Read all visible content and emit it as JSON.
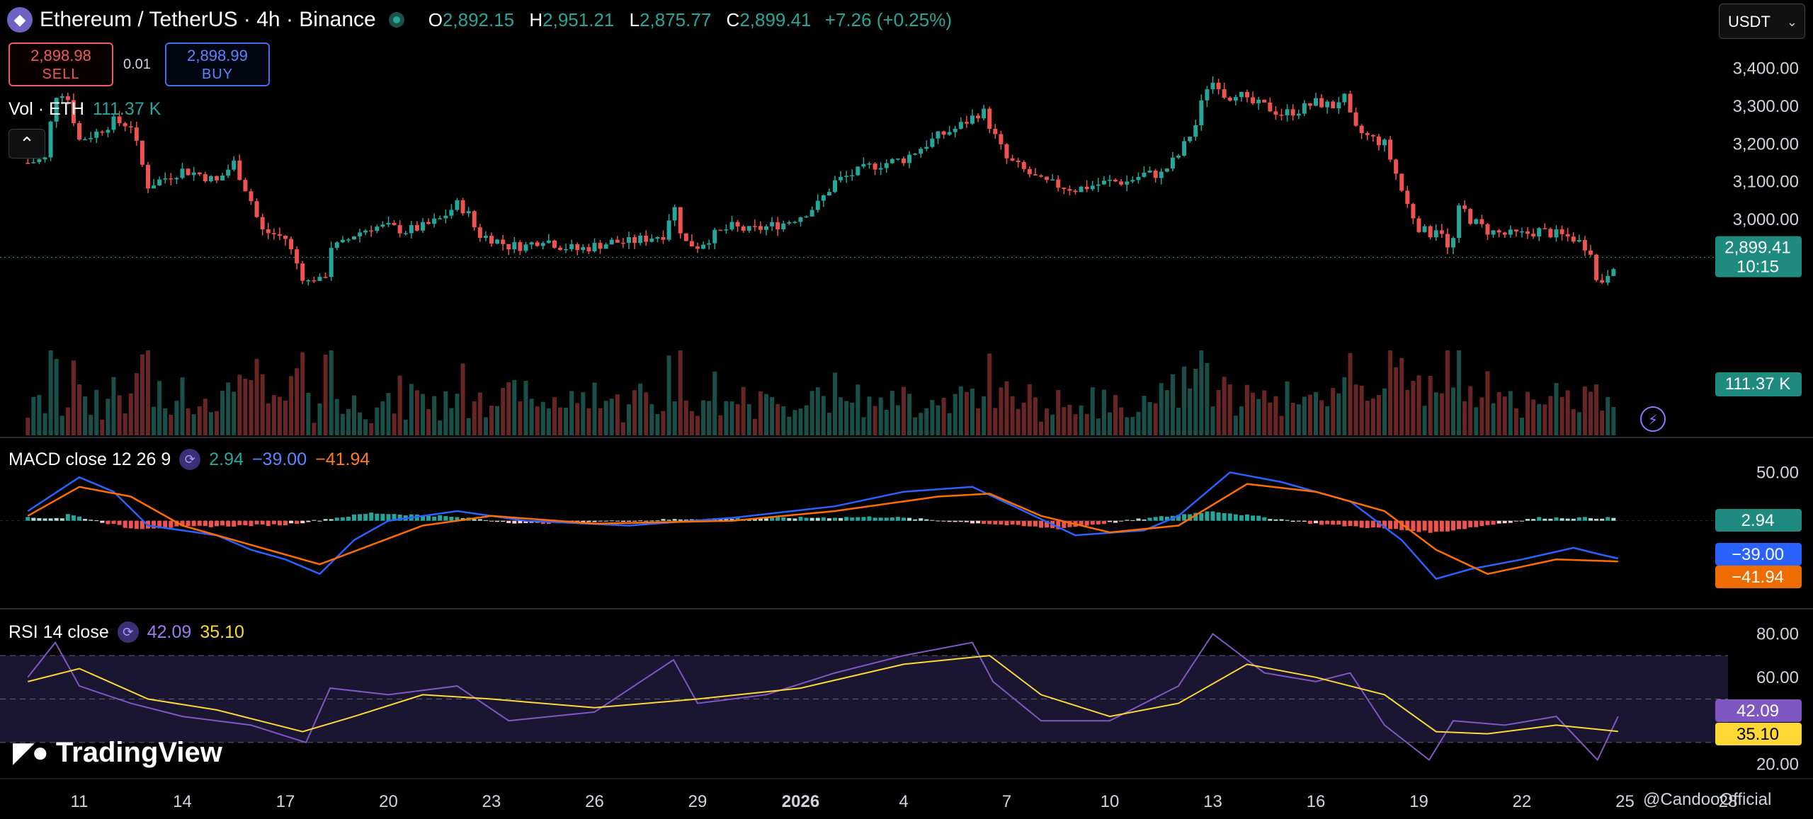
{
  "header": {
    "symbol": "Ethereum / TetherUS · 4h · Binance",
    "coin_icon": "ethereum-icon",
    "ohlc": {
      "o_label": "O",
      "o": "2,892.15",
      "h_label": "H",
      "h": "2,951.21",
      "l_label": "L",
      "l": "2,875.77",
      "c_label": "C",
      "c": "2,899.41",
      "change": "+7.26 (+0.25%)"
    }
  },
  "trade": {
    "sell_price": "2,898.98",
    "sell_label": "SELL",
    "spread": "0.01",
    "buy_price": "2,898.99",
    "buy_label": "BUY"
  },
  "volume_label": {
    "name": "Vol · ETH",
    "value": "111.37 K"
  },
  "collapse_icon": "chevron-up-icon",
  "currency_select": {
    "value": "USDT"
  },
  "macd_label": {
    "name": "MACD close 12 26 9",
    "hist": "2.94",
    "macd": "−39.00",
    "signal": "−41.94"
  },
  "rsi_label": {
    "name": "RSI 14 close",
    "rsi": "42.09",
    "ma": "35.10"
  },
  "logo": "TradingView",
  "watermark": "@CandooOfficial",
  "colors": {
    "up": "#26a69a",
    "down": "#ef5350",
    "macd_line": "#2962ff",
    "signal_line": "#ff6d00",
    "rsi": "#7e57c2",
    "rsi_ma": "#fdd835",
    "background": "#000000"
  },
  "chart_data": {
    "type": "candlestick",
    "interval": "4h",
    "price_axis_ticks": [
      "3,400.00",
      "3,300.00",
      "3,200.00",
      "3,100.00",
      "3,000.00"
    ],
    "price_range": [
      2700,
      3450
    ],
    "x_tick_labels": [
      "11",
      "14",
      "17",
      "20",
      "23",
      "26",
      "29",
      "2026",
      "4",
      "7",
      "10",
      "13",
      "16",
      "19",
      "22",
      "25",
      "28"
    ],
    "last_price": {
      "price": "2,899.41",
      "countdown": "10:15"
    },
    "last_volume": "111.37 K",
    "price_series": [
      {
        "d": 9.5,
        "p": 3150
      },
      {
        "d": 10.0,
        "p": 3160
      },
      {
        "d": 10.3,
        "p": 3330
      },
      {
        "d": 10.6,
        "p": 3340
      },
      {
        "d": 11.0,
        "p": 3210
      },
      {
        "d": 11.5,
        "p": 3230
      },
      {
        "d": 12.0,
        "p": 3260
      },
      {
        "d": 12.5,
        "p": 3250
      },
      {
        "d": 13.0,
        "p": 3090
      },
      {
        "d": 13.5,
        "p": 3110
      },
      {
        "d": 14.0,
        "p": 3130
      },
      {
        "d": 14.5,
        "p": 3120
      },
      {
        "d": 15.0,
        "p": 3100
      },
      {
        "d": 15.5,
        "p": 3150
      },
      {
        "d": 16.0,
        "p": 3050
      },
      {
        "d": 16.3,
        "p": 2970
      },
      {
        "d": 16.7,
        "p": 2960
      },
      {
        "d": 17.0,
        "p": 2950
      },
      {
        "d": 17.3,
        "p": 2890
      },
      {
        "d": 17.6,
        "p": 2830
      },
      {
        "d": 17.9,
        "p": 2850
      },
      {
        "d": 18.1,
        "p": 2820
      },
      {
        "d": 18.3,
        "p": 2930
      },
      {
        "d": 18.6,
        "p": 2930
      },
      {
        "d": 19.0,
        "p": 2960
      },
      {
        "d": 19.5,
        "p": 2980
      },
      {
        "d": 20.0,
        "p": 2980
      },
      {
        "d": 20.5,
        "p": 2970
      },
      {
        "d": 21.0,
        "p": 2980
      },
      {
        "d": 21.5,
        "p": 3000
      },
      {
        "d": 22.0,
        "p": 3040
      },
      {
        "d": 22.3,
        "p": 3020
      },
      {
        "d": 22.6,
        "p": 2960
      },
      {
        "d": 23.0,
        "p": 2950
      },
      {
        "d": 23.5,
        "p": 2930
      },
      {
        "d": 24.0,
        "p": 2930
      },
      {
        "d": 24.5,
        "p": 2950
      },
      {
        "d": 25.0,
        "p": 2930
      },
      {
        "d": 25.5,
        "p": 2920
      },
      {
        "d": 26.0,
        "p": 2930
      },
      {
        "d": 26.5,
        "p": 2940
      },
      {
        "d": 27.0,
        "p": 2940
      },
      {
        "d": 27.5,
        "p": 2950
      },
      {
        "d": 28.0,
        "p": 2960
      },
      {
        "d": 28.3,
        "p": 3040
      },
      {
        "d": 28.6,
        "p": 2940
      },
      {
        "d": 29.0,
        "p": 2930
      },
      {
        "d": 29.5,
        "p": 2960
      },
      {
        "d": 30.0,
        "p": 2980
      },
      {
        "d": 30.5,
        "p": 2970
      },
      {
        "d": 31.0,
        "p": 2980
      },
      {
        "d": 31.5,
        "p": 2990
      },
      {
        "d": 32.0,
        "p": 3010
      },
      {
        "d": 32.5,
        "p": 3040
      },
      {
        "d": 33.0,
        "p": 3100
      },
      {
        "d": 33.5,
        "p": 3120
      },
      {
        "d": 34.0,
        "p": 3140
      },
      {
        "d": 34.5,
        "p": 3150
      },
      {
        "d": 35.0,
        "p": 3160
      },
      {
        "d": 35.5,
        "p": 3190
      },
      {
        "d": 36.0,
        "p": 3220
      },
      {
        "d": 36.5,
        "p": 3240
      },
      {
        "d": 37.0,
        "p": 3270
      },
      {
        "d": 37.3,
        "p": 3290
      },
      {
        "d": 37.6,
        "p": 3230
      },
      {
        "d": 38.0,
        "p": 3160
      },
      {
        "d": 38.5,
        "p": 3130
      },
      {
        "d": 39.0,
        "p": 3100
      },
      {
        "d": 39.5,
        "p": 3090
      },
      {
        "d": 40.0,
        "p": 3080
      },
      {
        "d": 40.5,
        "p": 3090
      },
      {
        "d": 41.0,
        "p": 3100
      },
      {
        "d": 41.5,
        "p": 3100
      },
      {
        "d": 42.0,
        "p": 3120
      },
      {
        "d": 42.5,
        "p": 3120
      },
      {
        "d": 43.0,
        "p": 3170
      },
      {
        "d": 43.5,
        "p": 3250
      },
      {
        "d": 43.8,
        "p": 3350
      },
      {
        "d": 44.1,
        "p": 3370
      },
      {
        "d": 44.4,
        "p": 3320
      },
      {
        "d": 44.7,
        "p": 3340
      },
      {
        "d": 45.0,
        "p": 3310
      },
      {
        "d": 45.5,
        "p": 3300
      },
      {
        "d": 46.0,
        "p": 3280
      },
      {
        "d": 46.5,
        "p": 3290
      },
      {
        "d": 47.0,
        "p": 3310
      },
      {
        "d": 47.5,
        "p": 3300
      },
      {
        "d": 47.8,
        "p": 3330
      },
      {
        "d": 48.1,
        "p": 3240
      },
      {
        "d": 48.5,
        "p": 3220
      },
      {
        "d": 49.0,
        "p": 3200
      },
      {
        "d": 49.3,
        "p": 3130
      },
      {
        "d": 49.6,
        "p": 3050
      },
      {
        "d": 50.0,
        "p": 2980
      },
      {
        "d": 50.3,
        "p": 2960
      },
      {
        "d": 50.6,
        "p": 2990
      },
      {
        "d": 50.9,
        "p": 2900
      },
      {
        "d": 51.2,
        "p": 3040
      },
      {
        "d": 51.5,
        "p": 3000
      },
      {
        "d": 52.0,
        "p": 2970
      },
      {
        "d": 52.5,
        "p": 2960
      },
      {
        "d": 53.0,
        "p": 2960
      },
      {
        "d": 53.5,
        "p": 2970
      },
      {
        "d": 54.0,
        "p": 2960
      },
      {
        "d": 54.5,
        "p": 2950
      },
      {
        "d": 55.0,
        "p": 2920
      },
      {
        "d": 55.2,
        "p": 2820
      },
      {
        "d": 55.5,
        "p": 2860
      },
      {
        "d": 55.8,
        "p": 2900
      }
    ],
    "volume_series": [
      {
        "d": 10.3,
        "v": 0.9
      },
      {
        "d": 11.0,
        "v": 0.6
      },
      {
        "d": 16.0,
        "v": 0.65
      },
      {
        "d": 17.6,
        "v": 0.5
      },
      {
        "d": 18.1,
        "v": 0.95
      },
      {
        "d": 22.5,
        "v": 0.4
      },
      {
        "d": 28.3,
        "v": 0.4
      },
      {
        "d": 37.0,
        "v": 0.55
      },
      {
        "d": 43.8,
        "v": 0.85
      },
      {
        "d": 44.5,
        "v": 0.6
      },
      {
        "d": 49.3,
        "v": 0.8
      },
      {
        "d": 50.9,
        "v": 1.0
      },
      {
        "d": 50.3,
        "v": 0.7
      },
      {
        "d": 55.2,
        "v": 0.6
      }
    ],
    "macd": {
      "axis_ticks": [
        "50.00"
      ],
      "range": [
        -80,
        70
      ],
      "macd_line": [
        {
          "d": 9.5,
          "v": 10
        },
        {
          "d": 11.0,
          "v": 45
        },
        {
          "d": 12.0,
          "v": 30
        },
        {
          "d": 13.0,
          "v": -5
        },
        {
          "d": 14.0,
          "v": -10
        },
        {
          "d": 15.0,
          "v": -15
        },
        {
          "d": 16.0,
          "v": -30
        },
        {
          "d": 17.0,
          "v": -40
        },
        {
          "d": 18.0,
          "v": -55
        },
        {
          "d": 19.0,
          "v": -20
        },
        {
          "d": 20.0,
          "v": 0
        },
        {
          "d": 22.0,
          "v": 10
        },
        {
          "d": 24.0,
          "v": 0
        },
        {
          "d": 27.0,
          "v": -5
        },
        {
          "d": 30.0,
          "v": 3
        },
        {
          "d": 33.0,
          "v": 15
        },
        {
          "d": 35.0,
          "v": 30
        },
        {
          "d": 37.0,
          "v": 35
        },
        {
          "d": 38.5,
          "v": 10
        },
        {
          "d": 40.0,
          "v": -15
        },
        {
          "d": 42.0,
          "v": -10
        },
        {
          "d": 43.0,
          "v": 5
        },
        {
          "d": 44.5,
          "v": 50
        },
        {
          "d": 46.0,
          "v": 40
        },
        {
          "d": 48.0,
          "v": 20
        },
        {
          "d": 49.5,
          "v": -20
        },
        {
          "d": 50.5,
          "v": -60
        },
        {
          "d": 51.5,
          "v": -50
        },
        {
          "d": 53.0,
          "v": -40
        },
        {
          "d": 54.5,
          "v": -28
        },
        {
          "d": 55.3,
          "v": -35
        },
        {
          "d": 55.8,
          "v": -39
        }
      ],
      "signal_line": [
        {
          "d": 9.5,
          "v": 5
        },
        {
          "d": 11.0,
          "v": 35
        },
        {
          "d": 12.5,
          "v": 25
        },
        {
          "d": 14.0,
          "v": -5
        },
        {
          "d": 16.0,
          "v": -25
        },
        {
          "d": 18.0,
          "v": -45
        },
        {
          "d": 19.5,
          "v": -25
        },
        {
          "d": 21.0,
          "v": -5
        },
        {
          "d": 23.0,
          "v": 5
        },
        {
          "d": 26.0,
          "v": -3
        },
        {
          "d": 30.0,
          "v": 0
        },
        {
          "d": 33.0,
          "v": 10
        },
        {
          "d": 36.0,
          "v": 25
        },
        {
          "d": 37.5,
          "v": 28
        },
        {
          "d": 39.0,
          "v": 5
        },
        {
          "d": 41.0,
          "v": -12
        },
        {
          "d": 43.0,
          "v": -5
        },
        {
          "d": 45.0,
          "v": 38
        },
        {
          "d": 47.0,
          "v": 30
        },
        {
          "d": 49.0,
          "v": 10
        },
        {
          "d": 50.5,
          "v": -30
        },
        {
          "d": 52.0,
          "v": -55
        },
        {
          "d": 54.0,
          "v": -40
        },
        {
          "d": 55.8,
          "v": -42
        }
      ],
      "histogram": [
        {
          "d": 10.5,
          "v": 8
        },
        {
          "d": 12.5,
          "v": -8
        },
        {
          "d": 14.5,
          "v": -6
        },
        {
          "d": 17.0,
          "v": -4
        },
        {
          "d": 19.5,
          "v": 8
        },
        {
          "d": 21.5,
          "v": 5
        },
        {
          "d": 24.0,
          "v": -3
        },
        {
          "d": 29.0,
          "v": 2
        },
        {
          "d": 34.5,
          "v": 4
        },
        {
          "d": 39.5,
          "v": -8
        },
        {
          "d": 44.0,
          "v": 10
        },
        {
          "d": 47.0,
          "v": -3
        },
        {
          "d": 50.5,
          "v": -12
        },
        {
          "d": 53.5,
          "v": 3
        },
        {
          "d": 55.8,
          "v": 2.94
        }
      ]
    },
    "rsi": {
      "axis_ticks": [
        "80.00",
        "60.00",
        "20.00"
      ],
      "range": [
        15,
        85
      ],
      "band": [
        30,
        70
      ],
      "rsi_line": [
        {
          "d": 9.5,
          "v": 60
        },
        {
          "d": 10.3,
          "v": 76
        },
        {
          "d": 11.0,
          "v": 56
        },
        {
          "d": 12.5,
          "v": 48
        },
        {
          "d": 14.0,
          "v": 42
        },
        {
          "d": 16.0,
          "v": 38
        },
        {
          "d": 17.6,
          "v": 30
        },
        {
          "d": 18.3,
          "v": 55
        },
        {
          "d": 20.0,
          "v": 52
        },
        {
          "d": 22.0,
          "v": 56
        },
        {
          "d": 23.5,
          "v": 40
        },
        {
          "d": 26.0,
          "v": 44
        },
        {
          "d": 28.3,
          "v": 68
        },
        {
          "d": 29.0,
          "v": 48
        },
        {
          "d": 31.0,
          "v": 52
        },
        {
          "d": 33.0,
          "v": 62
        },
        {
          "d": 35.0,
          "v": 70
        },
        {
          "d": 37.0,
          "v": 76
        },
        {
          "d": 37.6,
          "v": 58
        },
        {
          "d": 39.0,
          "v": 40
        },
        {
          "d": 41.0,
          "v": 40
        },
        {
          "d": 43.0,
          "v": 56
        },
        {
          "d": 44.0,
          "v": 80
        },
        {
          "d": 45.5,
          "v": 62
        },
        {
          "d": 47.0,
          "v": 58
        },
        {
          "d": 48.0,
          "v": 62
        },
        {
          "d": 49.0,
          "v": 38
        },
        {
          "d": 50.3,
          "v": 22
        },
        {
          "d": 51.0,
          "v": 40
        },
        {
          "d": 52.5,
          "v": 38
        },
        {
          "d": 54.0,
          "v": 42
        },
        {
          "d": 55.2,
          "v": 22
        },
        {
          "d": 55.8,
          "v": 42
        }
      ],
      "rsi_ma": [
        {
          "d": 9.5,
          "v": 58
        },
        {
          "d": 11.0,
          "v": 64
        },
        {
          "d": 13.0,
          "v": 50
        },
        {
          "d": 15.0,
          "v": 45
        },
        {
          "d": 17.5,
          "v": 35
        },
        {
          "d": 19.0,
          "v": 42
        },
        {
          "d": 21.0,
          "v": 52
        },
        {
          "d": 23.0,
          "v": 50
        },
        {
          "d": 26.0,
          "v": 46
        },
        {
          "d": 29.0,
          "v": 50
        },
        {
          "d": 32.0,
          "v": 55
        },
        {
          "d": 35.0,
          "v": 66
        },
        {
          "d": 37.5,
          "v": 70
        },
        {
          "d": 39.0,
          "v": 52
        },
        {
          "d": 41.0,
          "v": 42
        },
        {
          "d": 43.0,
          "v": 48
        },
        {
          "d": 45.0,
          "v": 66
        },
        {
          "d": 47.0,
          "v": 60
        },
        {
          "d": 49.0,
          "v": 52
        },
        {
          "d": 50.5,
          "v": 35
        },
        {
          "d": 52.0,
          "v": 34
        },
        {
          "d": 54.0,
          "v": 38
        },
        {
          "d": 55.8,
          "v": 35.1
        }
      ]
    }
  }
}
